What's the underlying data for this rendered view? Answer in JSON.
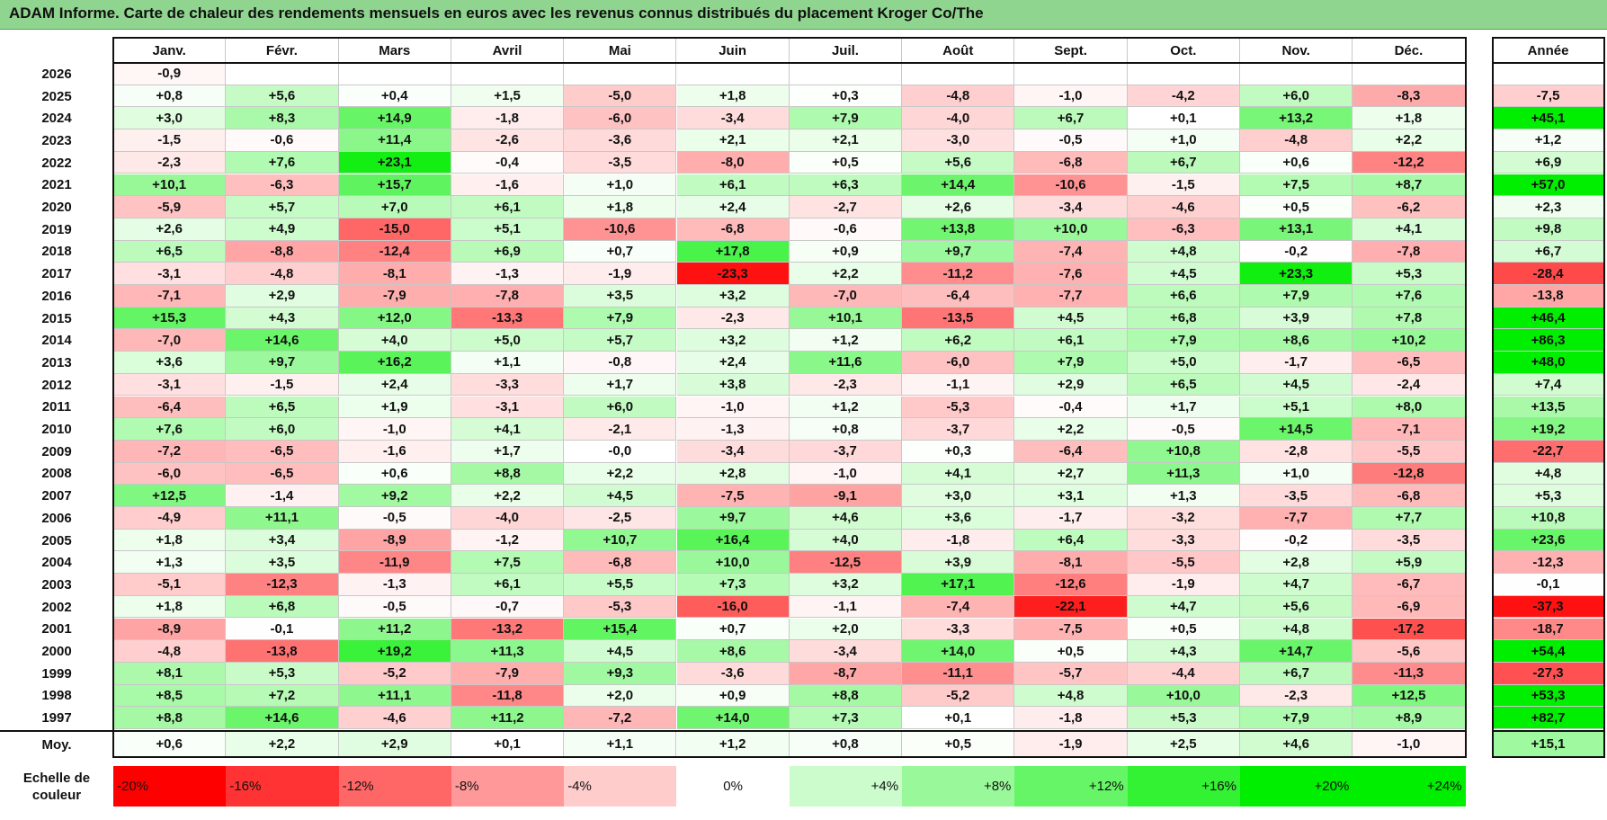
{
  "title": "ADAM Informe. Carte de chaleur des rendements mensuels en euros avec les revenus connus distribués du placement Kroger Co/The",
  "months": [
    "Janv.",
    "Févr.",
    "Mars",
    "Avril",
    "Mai",
    "Juin",
    "Juil.",
    "Août",
    "Sept.",
    "Oct.",
    "Nov.",
    "Déc."
  ],
  "annual_header": "Année",
  "average_label": "Moy.",
  "legend_label": "Echelle de couleur",
  "colors": {
    "negative_max": "#ff0000",
    "neutral": "#ffffff",
    "positive_max": "#00ee00",
    "title_bg": "#8fd48f"
  },
  "chart_data": {
    "type": "heatmap",
    "title": "ADAM Informe. Carte de chaleur des rendements mensuels en euros avec les revenus connus distribués du placement Kroger Co/The",
    "columns": [
      "Janv.",
      "Févr.",
      "Mars",
      "Avril",
      "Mai",
      "Juin",
      "Juil.",
      "Août",
      "Sept.",
      "Oct.",
      "Nov.",
      "Déc.",
      "Année"
    ],
    "rows": [
      {
        "year": "2026",
        "values": [
          "-0,9",
          "",
          "",
          "",
          "",
          "",
          "",
          "",
          "",
          "",
          "",
          ""
        ],
        "annual": ""
      },
      {
        "year": "2025",
        "values": [
          "+0,8",
          "+5,6",
          "+0,4",
          "+1,5",
          "-5,0",
          "+1,8",
          "+0,3",
          "-4,8",
          "-1,0",
          "-4,2",
          "+6,0",
          "-8,3"
        ],
        "annual": "-7,5"
      },
      {
        "year": "2024",
        "values": [
          "+3,0",
          "+8,3",
          "+14,9",
          "-1,8",
          "-6,0",
          "-3,4",
          "+7,9",
          "-4,0",
          "+6,7",
          "+0,1",
          "+13,2",
          "+1,8"
        ],
        "annual": "+45,1"
      },
      {
        "year": "2023",
        "values": [
          "-1,5",
          "-0,6",
          "+11,4",
          "-2,6",
          "-3,6",
          "+2,1",
          "+2,1",
          "-3,0",
          "-0,5",
          "+1,0",
          "-4,8",
          "+2,2"
        ],
        "annual": "+1,2"
      },
      {
        "year": "2022",
        "values": [
          "-2,3",
          "+7,6",
          "+23,1",
          "-0,4",
          "-3,5",
          "-8,0",
          "+0,5",
          "+5,6",
          "-6,8",
          "+6,7",
          "+0,6",
          "-12,2"
        ],
        "annual": "+6,9"
      },
      {
        "year": "2021",
        "values": [
          "+10,1",
          "-6,3",
          "+15,7",
          "-1,6",
          "+1,0",
          "+6,1",
          "+6,3",
          "+14,4",
          "-10,6",
          "-1,5",
          "+7,5",
          "+8,7"
        ],
        "annual": "+57,0"
      },
      {
        "year": "2020",
        "values": [
          "-5,9",
          "+5,7",
          "+7,0",
          "+6,1",
          "+1,8",
          "+2,4",
          "-2,7",
          "+2,6",
          "-3,4",
          "-4,6",
          "+0,5",
          "-6,2"
        ],
        "annual": "+2,3"
      },
      {
        "year": "2019",
        "values": [
          "+2,6",
          "+4,9",
          "-15,0",
          "+5,1",
          "-10,6",
          "-6,8",
          "-0,6",
          "+13,8",
          "+10,0",
          "-6,3",
          "+13,1",
          "+4,1"
        ],
        "annual": "+9,8"
      },
      {
        "year": "2018",
        "values": [
          "+6,5",
          "-8,8",
          "-12,4",
          "+6,9",
          "+0,7",
          "+17,8",
          "+0,9",
          "+9,7",
          "-7,4",
          "+4,8",
          "-0,2",
          "-7,8"
        ],
        "annual": "+6,7"
      },
      {
        "year": "2017",
        "values": [
          "-3,1",
          "-4,8",
          "-8,1",
          "-1,3",
          "-1,9",
          "-23,3",
          "+2,2",
          "-11,2",
          "-7,6",
          "+4,5",
          "+23,3",
          "+5,3"
        ],
        "annual": "-28,4"
      },
      {
        "year": "2016",
        "values": [
          "-7,1",
          "+2,9",
          "-7,9",
          "-7,8",
          "+3,5",
          "+3,2",
          "-7,0",
          "-6,4",
          "-7,7",
          "+6,6",
          "+7,9",
          "+7,6"
        ],
        "annual": "-13,8"
      },
      {
        "year": "2015",
        "values": [
          "+15,3",
          "+4,3",
          "+12,0",
          "-13,3",
          "+7,9",
          "-2,3",
          "+10,1",
          "-13,5",
          "+4,5",
          "+6,8",
          "+3,9",
          "+7,8"
        ],
        "annual": "+46,4"
      },
      {
        "year": "2014",
        "values": [
          "-7,0",
          "+14,6",
          "+4,0",
          "+5,0",
          "+5,7",
          "+3,2",
          "+1,2",
          "+6,2",
          "+6,1",
          "+7,9",
          "+8,6",
          "+10,2"
        ],
        "annual": "+86,3"
      },
      {
        "year": "2013",
        "values": [
          "+3,6",
          "+9,7",
          "+16,2",
          "+1,1",
          "-0,8",
          "+2,4",
          "+11,6",
          "-6,0",
          "+7,9",
          "+5,0",
          "-1,7",
          "-6,5"
        ],
        "annual": "+48,0"
      },
      {
        "year": "2012",
        "values": [
          "-3,1",
          "-1,5",
          "+2,4",
          "-3,3",
          "+1,7",
          "+3,8",
          "-2,3",
          "-1,1",
          "+2,9",
          "+6,5",
          "+4,5",
          "-2,4"
        ],
        "annual": "+7,4"
      },
      {
        "year": "2011",
        "values": [
          "-6,4",
          "+6,5",
          "+1,9",
          "-3,1",
          "+6,0",
          "-1,0",
          "+1,2",
          "-5,3",
          "-0,4",
          "+1,7",
          "+5,1",
          "+8,0"
        ],
        "annual": "+13,5"
      },
      {
        "year": "2010",
        "values": [
          "+7,6",
          "+6,0",
          "-1,0",
          "+4,1",
          "-2,1",
          "-1,3",
          "+0,8",
          "-3,7",
          "+2,2",
          "-0,5",
          "+14,5",
          "-7,1"
        ],
        "annual": "+19,2"
      },
      {
        "year": "2009",
        "values": [
          "-7,2",
          "-6,5",
          "-1,6",
          "+1,7",
          "-0,0",
          "-3,4",
          "-3,7",
          "+0,3",
          "-6,4",
          "+10,8",
          "-2,8",
          "-5,5"
        ],
        "annual": "-22,7"
      },
      {
        "year": "2008",
        "values": [
          "-6,0",
          "-6,5",
          "+0,6",
          "+8,8",
          "+2,2",
          "+2,8",
          "-1,0",
          "+4,1",
          "+2,7",
          "+11,3",
          "+1,0",
          "-12,8"
        ],
        "annual": "+4,8"
      },
      {
        "year": "2007",
        "values": [
          "+12,5",
          "-1,4",
          "+9,2",
          "+2,2",
          "+4,5",
          "-7,5",
          "-9,1",
          "+3,0",
          "+3,1",
          "+1,3",
          "-3,5",
          "-6,8"
        ],
        "annual": "+5,3"
      },
      {
        "year": "2006",
        "values": [
          "-4,9",
          "+11,1",
          "-0,5",
          "-4,0",
          "-2,5",
          "+9,7",
          "+4,6",
          "+3,6",
          "-1,7",
          "-3,2",
          "-7,7",
          "+7,7"
        ],
        "annual": "+10,8"
      },
      {
        "year": "2005",
        "values": [
          "+1,8",
          "+3,4",
          "-8,9",
          "-1,2",
          "+10,7",
          "+16,4",
          "+4,0",
          "-1,8",
          "+6,4",
          "-3,3",
          "-0,2",
          "-3,5"
        ],
        "annual": "+23,6"
      },
      {
        "year": "2004",
        "values": [
          "+1,3",
          "+3,5",
          "-11,9",
          "+7,5",
          "-6,8",
          "+10,0",
          "-12,5",
          "+3,9",
          "-8,1",
          "-5,5",
          "+2,8",
          "+5,9"
        ],
        "annual": "-12,3"
      },
      {
        "year": "2003",
        "values": [
          "-5,1",
          "-12,3",
          "-1,3",
          "+6,1",
          "+5,5",
          "+7,3",
          "+3,2",
          "+17,1",
          "-12,6",
          "-1,9",
          "+4,7",
          "-6,7"
        ],
        "annual": "-0,1"
      },
      {
        "year": "2002",
        "values": [
          "+1,8",
          "+6,8",
          "-0,5",
          "-0,7",
          "-5,3",
          "-16,0",
          "-1,1",
          "-7,4",
          "-22,1",
          "+4,7",
          "+5,6",
          "-6,9"
        ],
        "annual": "-37,3"
      },
      {
        "year": "2001",
        "values": [
          "-8,9",
          "-0,1",
          "+11,2",
          "-13,2",
          "+15,4",
          "+0,7",
          "+2,0",
          "-3,3",
          "-7,5",
          "+0,5",
          "+4,8",
          "-17,2"
        ],
        "annual": "-18,7"
      },
      {
        "year": "2000",
        "values": [
          "-4,8",
          "-13,8",
          "+19,2",
          "+11,3",
          "+4,5",
          "+8,6",
          "-3,4",
          "+14,0",
          "+0,5",
          "+4,3",
          "+14,7",
          "-5,6"
        ],
        "annual": "+54,4"
      },
      {
        "year": "1999",
        "values": [
          "+8,1",
          "+5,3",
          "-5,2",
          "-7,9",
          "+9,3",
          "-3,6",
          "-8,7",
          "-11,1",
          "-5,7",
          "-4,4",
          "+6,7",
          "-11,3"
        ],
        "annual": "-27,3"
      },
      {
        "year": "1998",
        "values": [
          "+8,5",
          "+7,2",
          "+11,1",
          "-11,8",
          "+2,0",
          "+0,9",
          "+8,8",
          "-5,2",
          "+4,8",
          "+10,0",
          "-2,3",
          "+12,5"
        ],
        "annual": "+53,3"
      },
      {
        "year": "1997",
        "values": [
          "+8,8",
          "+14,6",
          "-4,6",
          "+11,2",
          "-7,2",
          "+14,0",
          "+7,3",
          "+0,1",
          "-1,8",
          "+5,3",
          "+7,9",
          "+8,9"
        ],
        "annual": "+82,7"
      }
    ],
    "average": {
      "values": [
        "+0,6",
        "+2,2",
        "+2,9",
        "+0,1",
        "+1,1",
        "+1,2",
        "+0,8",
        "+0,5",
        "-1,9",
        "+2,5",
        "+4,6",
        "-1,0"
      ],
      "annual": "+15,1"
    },
    "color_scale": [
      "-20%",
      "-16%",
      "-12%",
      "-8%",
      "-4%",
      "0%",
      "+4%",
      "+8%",
      "+12%",
      "+16%",
      "+20%",
      "+24%"
    ]
  }
}
